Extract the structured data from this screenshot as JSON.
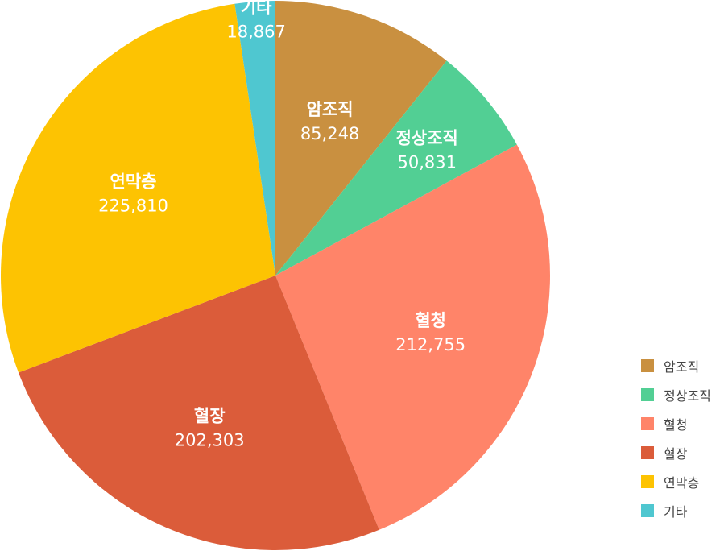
{
  "chart_data": {
    "type": "pie",
    "categories": [
      "암조직",
      "정상조직",
      "혈청",
      "혈장",
      "연막층",
      "기타"
    ],
    "values": [
      85248,
      50831,
      212755,
      202303,
      225810,
      18867
    ],
    "value_labels": [
      "85,248",
      "50,831",
      "212,755",
      "202,303",
      "225,810",
      "18,867"
    ],
    "colors": [
      "#c99040",
      "#52cf94",
      "#ff8469",
      "#db5c3a",
      "#fdc302",
      "#4fc7d0"
    ],
    "start_angle": "12 o'clock",
    "direction": "clockwise",
    "legend": {
      "placement": "bottom-right",
      "items": [
        "암조직",
        "정상조직",
        "혈청",
        "혈장",
        "연막층",
        "기타"
      ]
    }
  }
}
